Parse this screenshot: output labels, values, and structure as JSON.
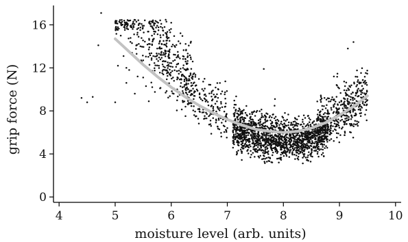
{
  "chart_data": {
    "type": "scatter",
    "title": "",
    "xlabel": "moisture level (arb. units)",
    "ylabel": "grip force (N)",
    "xlim": [
      3.9,
      10.1
    ],
    "ylim": [
      -0.5,
      17.8
    ],
    "xticks": [
      4,
      5,
      6,
      7,
      8,
      9,
      10
    ],
    "yticks": [
      0,
      4,
      8,
      12,
      16
    ],
    "grid": false,
    "legend": "none",
    "point_color": "#111111",
    "fit_color": "#c2c2c2",
    "series": [
      {
        "values_description_omitted": true,
        "x": [
          4.4,
          4.5,
          4.6,
          4.7,
          4.75,
          5.0,
          5.05,
          5.1,
          5.15,
          5.2,
          5.25,
          5.3,
          5.35,
          5.4,
          5.45,
          5.5,
          5.55,
          5.6,
          5.65,
          5.7,
          5.75,
          5.8,
          5.85,
          5.9,
          5.95,
          6.0,
          6.05,
          6.1,
          6.15,
          6.2,
          6.3,
          6.4,
          6.5,
          6.6,
          6.7,
          6.8,
          6.9,
          7.0,
          7.1,
          7.2,
          7.3,
          7.4,
          7.5,
          7.6,
          7.7,
          7.8,
          7.9,
          8.0,
          8.1,
          8.2,
          8.3,
          8.4,
          8.5,
          8.6,
          8.7,
          8.8,
          8.9,
          9.0,
          9.1,
          9.2,
          9.3,
          9.4,
          9.5,
          5.2,
          5.5,
          5.9,
          6.3,
          6.7,
          7.1,
          7.5,
          7.9,
          8.3,
          8.7,
          9.1,
          9.4,
          7.65,
          7.75,
          7.85,
          8.55,
          8.65,
          8.9,
          9.15,
          9.25
        ],
        "y": [
          9.2,
          8.8,
          9.3,
          14.1,
          17.1,
          8.8,
          12.2,
          15.0,
          13.1,
          10.6,
          11.8,
          13.4,
          9.6,
          11.2,
          14.0,
          12.7,
          10.3,
          8.9,
          12.9,
          11.5,
          13.8,
          10.1,
          15.5,
          9.7,
          12.3,
          16.2,
          10.8,
          11.7,
          9.5,
          10.2,
          8.6,
          9.1,
          8.2,
          7.3,
          7.8,
          7.2,
          6.9,
          6.4,
          6.1,
          5.8,
          5.6,
          5.4,
          5.2,
          5.0,
          5.3,
          5.5,
          5.1,
          4.9,
          5.2,
          5.4,
          4.7,
          4.8,
          5.6,
          6.2,
          7.1,
          7.8,
          8.4,
          8.8,
          9.1,
          9.3,
          9.6,
          9.2,
          9.0,
          12.0,
          11.1,
          12.6,
          10.0,
          7.1,
          5.2,
          4.4,
          4.2,
          4.1,
          6.8,
          10.3,
          8.3,
          11.9,
          7.4,
          9.1,
          4.3,
          5.8,
          11.2,
          13.8,
          14.4
        ]
      }
    ],
    "fit_curve": {
      "x": [
        5.0,
        5.25,
        5.5,
        5.75,
        6.0,
        6.25,
        6.5,
        6.75,
        7.0,
        7.25,
        7.5,
        7.75,
        8.0,
        8.25,
        8.5,
        8.75,
        9.0,
        9.25,
        9.5
      ],
      "y": [
        14.7,
        13.5,
        12.3,
        11.2,
        10.2,
        9.3,
        8.5,
        7.8,
        7.2,
        6.7,
        6.3,
        6.1,
        6.0,
        6.1,
        6.4,
        6.9,
        7.6,
        8.4,
        9.4
      ]
    }
  }
}
